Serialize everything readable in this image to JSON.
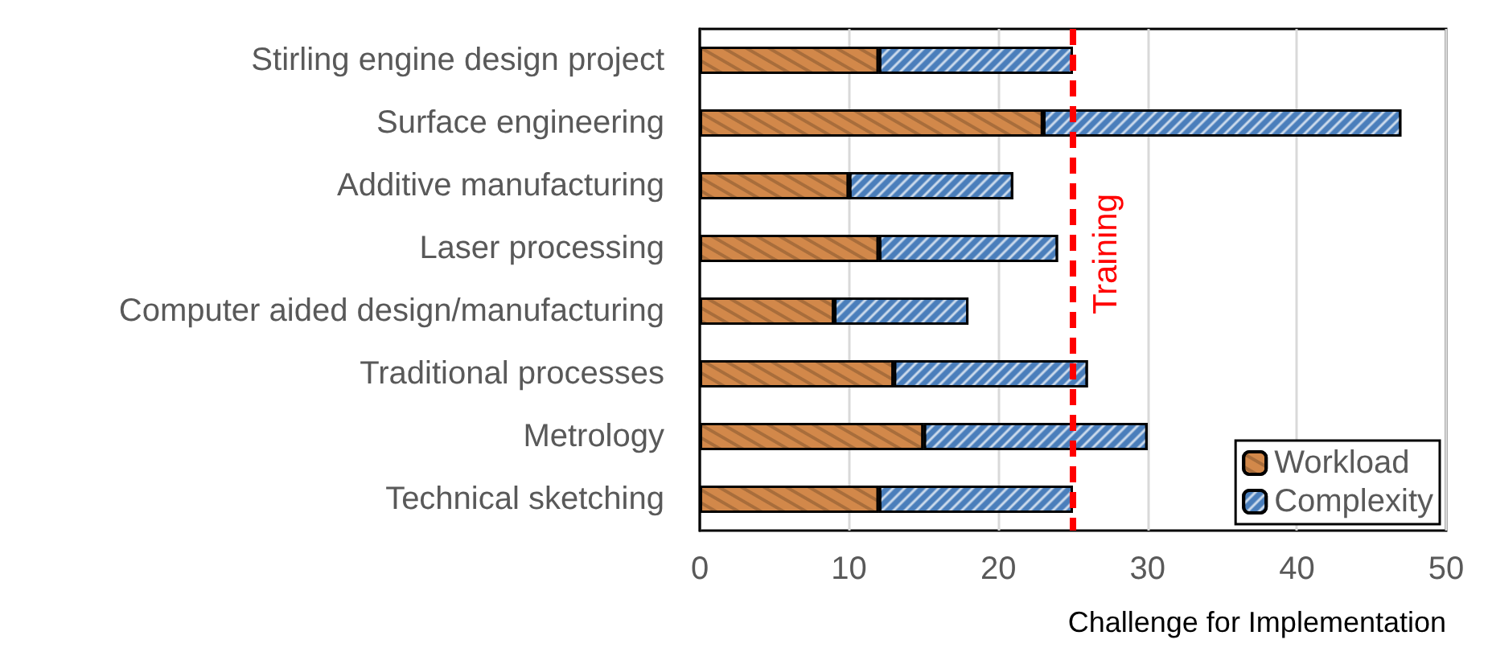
{
  "chart_data": {
    "type": "bar",
    "orientation": "horizontal",
    "stacked": true,
    "xlabel": "Challenge for Implementation",
    "categories": [
      "Stirling engine design project",
      "Surface engineering",
      "Additive manufacturing",
      "Laser processing",
      "Computer aided design/manufacturing",
      "Traditional processes",
      "Metrology",
      "Technical sketching"
    ],
    "series": [
      {
        "name": "Workload",
        "color": "#d2884a",
        "values": [
          12,
          23,
          10,
          12,
          9,
          13,
          15,
          12
        ]
      },
      {
        "name": "Complexity",
        "color": "#4a7ebb",
        "values": [
          13,
          24,
          11,
          12,
          9,
          13,
          15,
          13
        ]
      }
    ],
    "xlim": [
      0,
      50
    ],
    "xticks": [
      0,
      10,
      20,
      30,
      40,
      50
    ],
    "grid": "x",
    "legend": "bottom right",
    "ref_lines": [
      {
        "axis": "x",
        "value": 25,
        "label": "Training",
        "color": "#ff0000",
        "line_style": "dashed"
      }
    ]
  }
}
